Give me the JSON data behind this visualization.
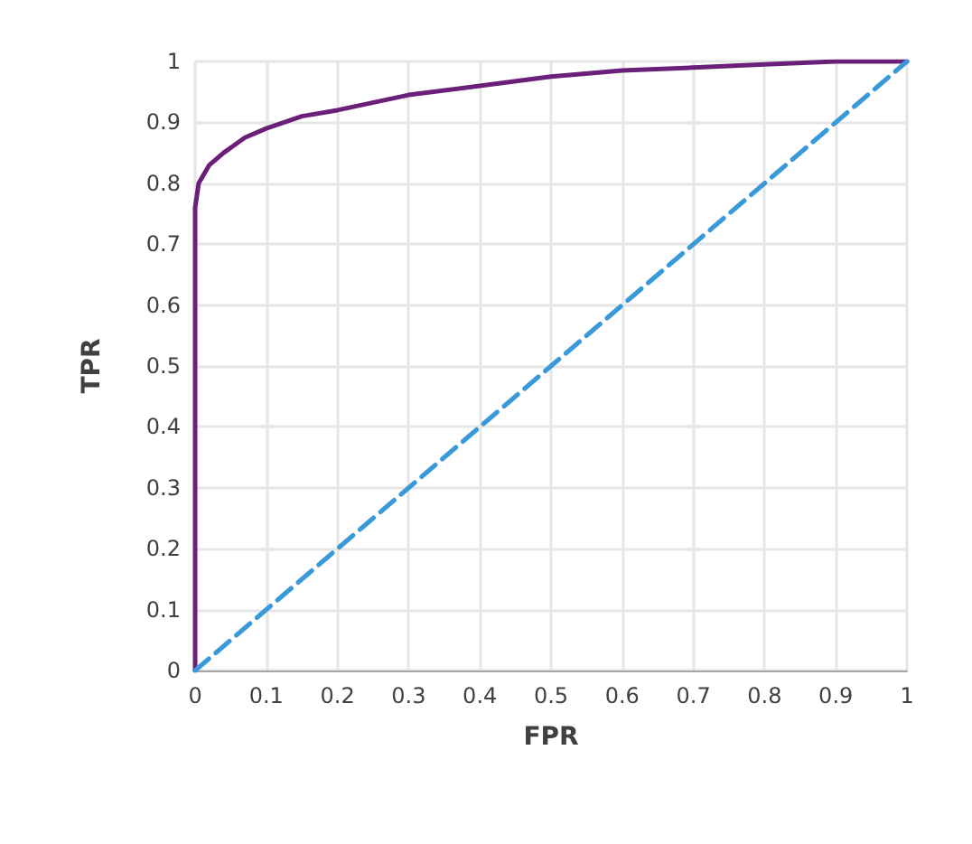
{
  "chart_data": {
    "type": "line",
    "xlabel": "FPR",
    "ylabel": "TPR",
    "xlim": [
      0,
      1
    ],
    "ylim": [
      0,
      1
    ],
    "xticks": [
      0,
      0.1,
      0.2,
      0.3,
      0.4,
      0.5,
      0.6,
      0.7,
      0.8,
      0.9,
      1
    ],
    "yticks": [
      0,
      0.1,
      0.2,
      0.3,
      0.4,
      0.5,
      0.6,
      0.7,
      0.8,
      0.9,
      1
    ],
    "grid": true,
    "marker": "none",
    "series": [
      {
        "color": "#6a1f78",
        "line_style": "solid",
        "x": [
          0,
          0,
          0.005,
          0.02,
          0.04,
          0.07,
          0.1,
          0.15,
          0.2,
          0.3,
          0.4,
          0.5,
          0.6,
          0.7,
          0.8,
          0.9,
          1
        ],
        "values": [
          0,
          0.76,
          0.8,
          0.83,
          0.85,
          0.875,
          0.89,
          0.91,
          0.92,
          0.945,
          0.96,
          0.975,
          0.985,
          0.99,
          0.995,
          1,
          1
        ]
      },
      {
        "color": "#3a9ad9",
        "line_style": "dashed",
        "x": [
          0,
          1
        ],
        "values": [
          0,
          1
        ]
      }
    ]
  }
}
